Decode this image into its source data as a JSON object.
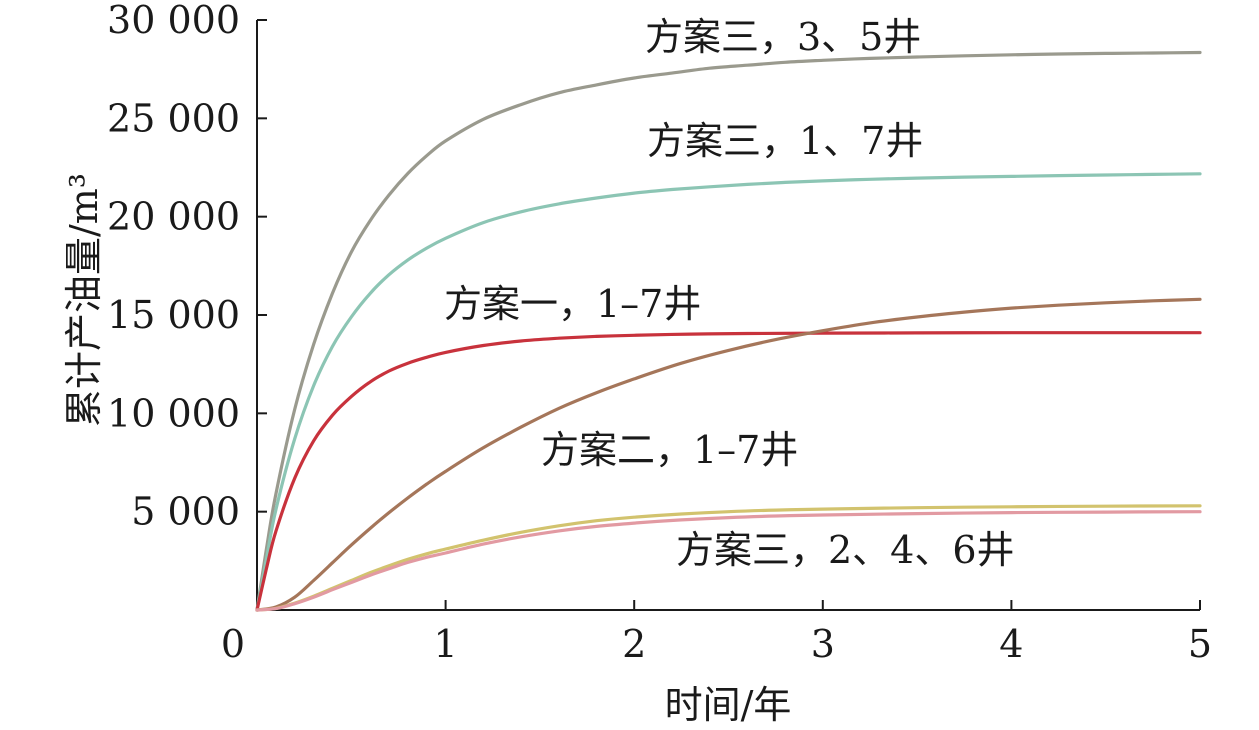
{
  "chart_data": {
    "type": "line",
    "xlabel": "时间/年",
    "ylabel": "累计产油量/m³",
    "xlim": [
      0,
      5
    ],
    "ylim": [
      0,
      30000
    ],
    "x_ticks": [
      {
        "value": 0,
        "label": "0"
      },
      {
        "value": 1,
        "label": "1"
      },
      {
        "value": 2,
        "label": "2"
      },
      {
        "value": 3,
        "label": "3"
      },
      {
        "value": 4,
        "label": "4"
      },
      {
        "value": 5,
        "label": "5"
      }
    ],
    "y_ticks": [
      {
        "value": 5000,
        "label": "5 000"
      },
      {
        "value": 10000,
        "label": "10 000"
      },
      {
        "value": 15000,
        "label": "15 000"
      },
      {
        "value": 20000,
        "label": "20 000"
      },
      {
        "value": 25000,
        "label": "25 000"
      },
      {
        "value": 30000,
        "label": "30 000"
      }
    ],
    "grid": false,
    "legend": "inline labels",
    "series": [
      {
        "name": "方案三，3、5井",
        "color": "#9a9a8e",
        "x": [
          0,
          0.05,
          0.1,
          0.2,
          0.3,
          0.4,
          0.5,
          0.6,
          0.7,
          0.8,
          0.9,
          1.0,
          1.2,
          1.4,
          1.6,
          1.8,
          2.0,
          2.2,
          2.4,
          2.6,
          2.8,
          3.0,
          3.25,
          3.5,
          3.75,
          4.0,
          4.25,
          4.5,
          4.75,
          5.0
        ],
        "y": [
          0,
          3100,
          5900,
          10200,
          13500,
          16100,
          18200,
          19800,
          21100,
          22200,
          23100,
          23850,
          24950,
          25700,
          26300,
          26700,
          27050,
          27300,
          27550,
          27700,
          27850,
          27950,
          28050,
          28120,
          28180,
          28230,
          28270,
          28300,
          28320,
          28350
        ]
      },
      {
        "name": "方案三，1、7井",
        "color": "#8cc5b4",
        "x": [
          0,
          0.05,
          0.1,
          0.2,
          0.3,
          0.4,
          0.5,
          0.6,
          0.7,
          0.8,
          0.9,
          1.0,
          1.2,
          1.4,
          1.6,
          1.8,
          2.0,
          2.2,
          2.4,
          2.6,
          2.8,
          3.0,
          3.25,
          3.5,
          3.75,
          4.0,
          4.25,
          4.5,
          4.75,
          5.0
        ],
        "y": [
          0,
          2600,
          5100,
          8700,
          11400,
          13400,
          14900,
          16100,
          17050,
          17800,
          18400,
          18900,
          19700,
          20250,
          20650,
          20950,
          21200,
          21380,
          21520,
          21640,
          21740,
          21820,
          21900,
          21960,
          22010,
          22050,
          22090,
          22120,
          22150,
          22180
        ]
      },
      {
        "name": "方案一，1–7井",
        "color": "#c8323c",
        "x": [
          0,
          0.05,
          0.1,
          0.2,
          0.3,
          0.4,
          0.5,
          0.6,
          0.7,
          0.8,
          0.9,
          1.0,
          1.2,
          1.4,
          1.6,
          1.8,
          2.0,
          2.3,
          2.6,
          3.0,
          3.5,
          4.0,
          4.5,
          5.0
        ],
        "y": [
          0,
          2100,
          4000,
          6700,
          8600,
          9900,
          10850,
          11600,
          12150,
          12550,
          12850,
          13100,
          13450,
          13680,
          13820,
          13910,
          13970,
          14030,
          14060,
          14080,
          14090,
          14100,
          14100,
          14100
        ]
      },
      {
        "name": "方案二，1–7井",
        "color": "#a5765a",
        "x": [
          0,
          0.1,
          0.2,
          0.3,
          0.4,
          0.5,
          0.6,
          0.7,
          0.8,
          0.9,
          1.0,
          1.2,
          1.4,
          1.6,
          1.8,
          2.0,
          2.25,
          2.5,
          2.75,
          3.0,
          3.25,
          3.5,
          3.75,
          4.0,
          4.25,
          4.5,
          4.75,
          5.0
        ],
        "y": [
          0,
          150,
          650,
          1500,
          2400,
          3300,
          4150,
          4950,
          5700,
          6400,
          7050,
          8250,
          9300,
          10250,
          11050,
          11750,
          12550,
          13200,
          13750,
          14200,
          14600,
          14900,
          15150,
          15350,
          15500,
          15620,
          15720,
          15800
        ]
      },
      {
        "name": "方案三，2、4、6井",
        "color": "#d2c36e",
        "x": [
          0,
          0.1,
          0.2,
          0.3,
          0.4,
          0.5,
          0.6,
          0.7,
          0.8,
          0.9,
          1.0,
          1.2,
          1.4,
          1.6,
          1.8,
          2.0,
          2.25,
          2.5,
          2.75,
          3.0,
          3.5,
          4.0,
          4.5,
          5.0
        ],
        "y": [
          0,
          80,
          350,
          700,
          1100,
          1500,
          1900,
          2250,
          2580,
          2860,
          3100,
          3550,
          3950,
          4280,
          4540,
          4720,
          4880,
          5000,
          5080,
          5130,
          5200,
          5250,
          5280,
          5300
        ]
      },
      {
        "name": "方案三，2、4、6井",
        "color": "#e29aa2",
        "x": [
          0,
          0.1,
          0.2,
          0.3,
          0.4,
          0.5,
          0.6,
          0.7,
          0.8,
          0.9,
          1.0,
          1.2,
          1.4,
          1.6,
          1.8,
          2.0,
          2.25,
          2.5,
          2.75,
          3.0,
          3.5,
          4.0,
          4.5,
          5.0
        ],
        "y": [
          0,
          70,
          320,
          650,
          1030,
          1400,
          1770,
          2100,
          2420,
          2680,
          2900,
          3350,
          3720,
          4020,
          4250,
          4420,
          4580,
          4700,
          4780,
          4830,
          4900,
          4950,
          4980,
          5000
        ]
      }
    ],
    "annotations": [
      {
        "text": "方案三，3、5井",
        "series_index": 0
      },
      {
        "text": "方案三，1、7井",
        "series_index": 1
      },
      {
        "text": "方案一，1–7井",
        "series_index": 2
      },
      {
        "text": "方案二，1–7井",
        "series_index": 3
      },
      {
        "text": "方案三，2、4、6井",
        "series_index": 4
      }
    ]
  }
}
